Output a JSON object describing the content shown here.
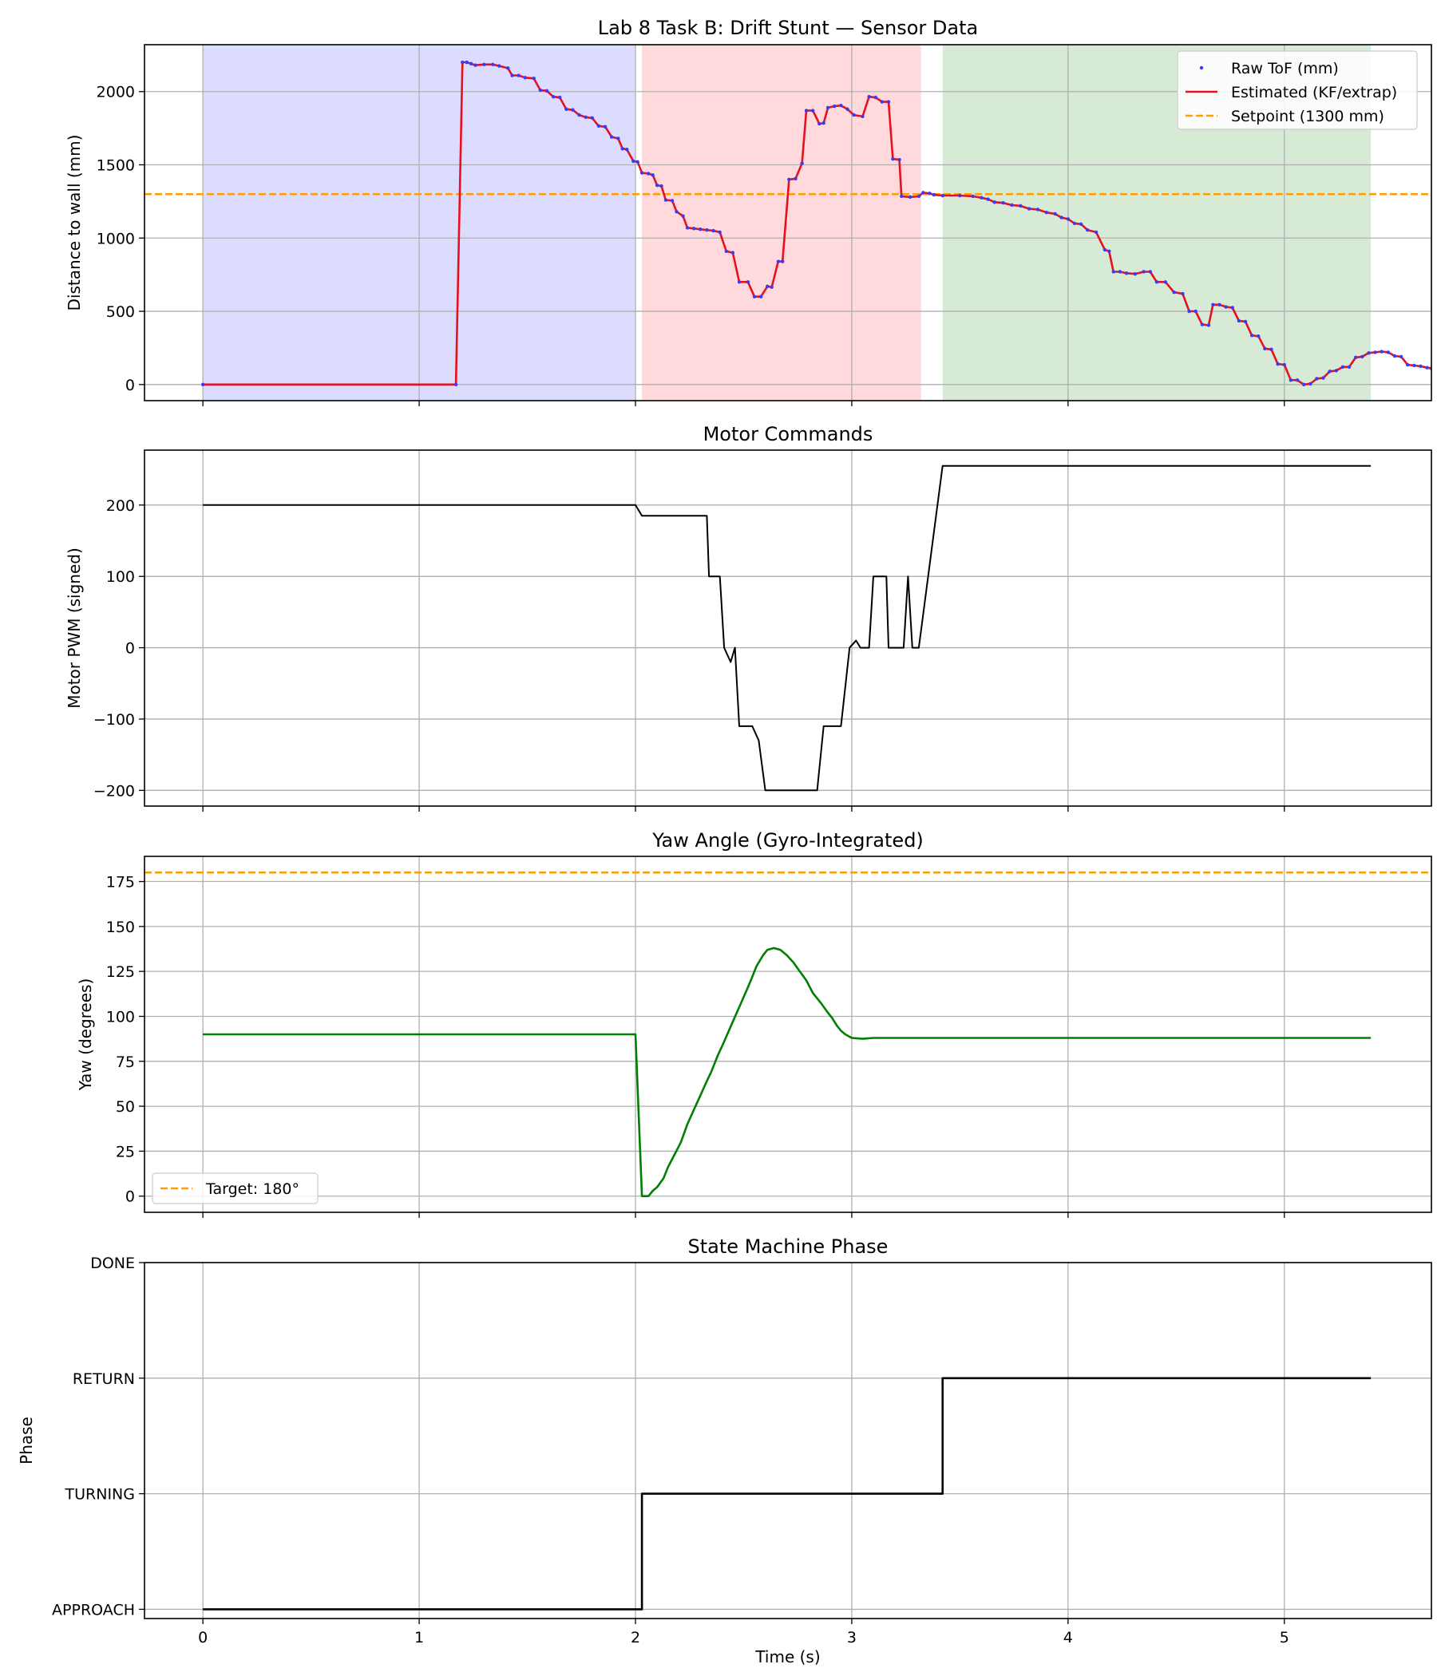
{
  "figure_title": "Lab 8 Task B: Drift Stunt — Sensor Data",
  "xlabel": "Time (s)",
  "colors": {
    "raw": "#3b3bf5",
    "estimate": "#e8101d",
    "setpoint": "#ff9e00",
    "motor": "#000000",
    "yaw": "#008000",
    "phase": "#000000",
    "phase_approach": "#dcdcff",
    "phase_turning": "#ffd9dc",
    "phase_return": "#d6ead6"
  },
  "chart_data": [
    {
      "type": "line",
      "title": "Lab 8 Task B: Drift Stunt — Sensor Data",
      "xlabel": "",
      "ylabel": "Distance to wall (mm)",
      "xlim": [
        -0.27,
        5.68
      ],
      "ylim": [
        -110,
        2320
      ],
      "xticks": [
        0,
        1,
        2,
        3,
        4,
        5
      ],
      "yticks": [
        0,
        500,
        1000,
        1500,
        2000
      ],
      "grid": true,
      "legend_position": "top-right",
      "legend": [
        "Raw ToF (mm)",
        "Estimated (KF/extrap)",
        "Setpoint (1300 mm)"
      ],
      "shaded_regions": [
        {
          "x0": 0,
          "x1": 2.0,
          "color": "phase_approach"
        },
        {
          "x0": 2.03,
          "x1": 3.32,
          "color": "phase_turning"
        },
        {
          "x0": 3.42,
          "x1": 5.4,
          "color": "phase_return"
        }
      ],
      "hlines": [
        {
          "y": 1300,
          "name": "Setpoint (1300 mm)",
          "style": "dashed",
          "color": "setpoint"
        }
      ],
      "series": [
        {
          "name": "Estimated (KF/extrap)",
          "style": "line",
          "color": "estimate",
          "points": [
            [
              0,
              0
            ],
            [
              1.17,
              0
            ],
            [
              1.2,
              2200
            ],
            [
              1.22,
              2200
            ],
            [
              1.24,
              2190
            ],
            [
              1.26,
              2180
            ],
            [
              1.3,
              2185
            ],
            [
              1.34,
              2185
            ],
            [
              1.37,
              2175
            ],
            [
              1.41,
              2160
            ],
            [
              1.43,
              2110
            ],
            [
              1.46,
              2110
            ],
            [
              1.49,
              2095
            ],
            [
              1.53,
              2090
            ],
            [
              1.56,
              2010
            ],
            [
              1.59,
              2005
            ],
            [
              1.62,
              1965
            ],
            [
              1.65,
              1960
            ],
            [
              1.68,
              1880
            ],
            [
              1.71,
              1875
            ],
            [
              1.74,
              1840
            ],
            [
              1.77,
              1825
            ],
            [
              1.8,
              1820
            ],
            [
              1.83,
              1765
            ],
            [
              1.86,
              1760
            ],
            [
              1.89,
              1690
            ],
            [
              1.92,
              1680
            ],
            [
              1.94,
              1610
            ],
            [
              1.96,
              1605
            ],
            [
              1.99,
              1525
            ],
            [
              2.01,
              1520
            ],
            [
              2.03,
              1445
            ],
            [
              2.06,
              1440
            ],
            [
              2.08,
              1430
            ],
            [
              2.1,
              1360
            ],
            [
              2.12,
              1355
            ],
            [
              2.14,
              1260
            ],
            [
              2.17,
              1255
            ],
            [
              2.19,
              1180
            ],
            [
              2.22,
              1150
            ],
            [
              2.24,
              1070
            ],
            [
              2.27,
              1065
            ],
            [
              2.3,
              1060
            ],
            [
              2.33,
              1055
            ],
            [
              2.36,
              1050
            ],
            [
              2.39,
              1040
            ],
            [
              2.42,
              910
            ],
            [
              2.45,
              900
            ],
            [
              2.48,
              700
            ],
            [
              2.52,
              700
            ],
            [
              2.55,
              600
            ],
            [
              2.58,
              600
            ],
            [
              2.61,
              670
            ],
            [
              2.63,
              665
            ],
            [
              2.66,
              840
            ],
            [
              2.68,
              840
            ],
            [
              2.71,
              1400
            ],
            [
              2.74,
              1405
            ],
            [
              2.77,
              1510
            ],
            [
              2.79,
              1870
            ],
            [
              2.82,
              1870
            ],
            [
              2.85,
              1780
            ],
            [
              2.87,
              1785
            ],
            [
              2.89,
              1890
            ],
            [
              2.92,
              1900
            ],
            [
              2.95,
              1905
            ],
            [
              2.98,
              1880
            ],
            [
              3.01,
              1840
            ],
            [
              3.05,
              1830
            ],
            [
              3.08,
              1965
            ],
            [
              3.11,
              1960
            ],
            [
              3.14,
              1930
            ],
            [
              3.17,
              1930
            ],
            [
              3.19,
              1540
            ],
            [
              3.22,
              1535
            ],
            [
              3.23,
              1285
            ],
            [
              3.27,
              1280
            ],
            [
              3.31,
              1285
            ],
            [
              3.33,
              1310
            ],
            [
              3.36,
              1305
            ],
            [
              3.38,
              1295
            ],
            [
              3.42,
              1290
            ],
            [
              3.5,
              1290
            ],
            [
              3.56,
              1285
            ],
            [
              3.6,
              1275
            ],
            [
              3.63,
              1265
            ],
            [
              3.66,
              1245
            ],
            [
              3.7,
              1240
            ],
            [
              3.74,
              1225
            ],
            [
              3.78,
              1220
            ],
            [
              3.82,
              1200
            ],
            [
              3.86,
              1195
            ],
            [
              3.9,
              1175
            ],
            [
              3.94,
              1165
            ],
            [
              3.97,
              1140
            ],
            [
              4.0,
              1130
            ],
            [
              4.03,
              1100
            ],
            [
              4.06,
              1095
            ],
            [
              4.09,
              1055
            ],
            [
              4.13,
              1040
            ],
            [
              4.17,
              920
            ],
            [
              4.19,
              910
            ],
            [
              4.21,
              770
            ],
            [
              4.24,
              770
            ],
            [
              4.27,
              760
            ],
            [
              4.31,
              755
            ],
            [
              4.35,
              770
            ],
            [
              4.38,
              770
            ],
            [
              4.41,
              700
            ],
            [
              4.45,
              700
            ],
            [
              4.49,
              630
            ],
            [
              4.53,
              620
            ],
            [
              4.56,
              500
            ],
            [
              4.59,
              500
            ],
            [
              4.62,
              410
            ],
            [
              4.65,
              405
            ],
            [
              4.67,
              545
            ],
            [
              4.7,
              545
            ],
            [
              4.73,
              530
            ],
            [
              4.76,
              525
            ],
            [
              4.79,
              435
            ],
            [
              4.82,
              430
            ],
            [
              4.85,
              335
            ],
            [
              4.88,
              330
            ],
            [
              4.91,
              245
            ],
            [
              4.94,
              240
            ],
            [
              4.97,
              140
            ],
            [
              5.0,
              135
            ],
            [
              5.03,
              30
            ],
            [
              5.06,
              30
            ],
            [
              5.09,
              0
            ],
            [
              5.12,
              5
            ],
            [
              5.15,
              40
            ],
            [
              5.18,
              45
            ],
            [
              5.21,
              90
            ],
            [
              5.24,
              95
            ],
            [
              5.27,
              120
            ],
            [
              5.3,
              120
            ],
            [
              5.33,
              185
            ],
            [
              5.36,
              190
            ],
            [
              5.39,
              215
            ],
            [
              5.42,
              220
            ],
            [
              5.45,
              225
            ],
            [
              5.48,
              220
            ],
            [
              5.51,
              195
            ],
            [
              5.54,
              190
            ],
            [
              5.57,
              135
            ],
            [
              5.6,
              130
            ],
            [
              5.63,
              125
            ],
            [
              5.66,
              115
            ],
            [
              5.68,
              110
            ],
            [
              5.71,
              105
            ]
          ]
        },
        {
          "name": "Raw ToF (mm)",
          "style": "markers",
          "color": "raw",
          "sample_of": "Estimated (KF/extrap)",
          "step": 1
        }
      ]
    },
    {
      "type": "line",
      "title": "Motor Commands",
      "xlabel": "",
      "ylabel": "Motor PWM (signed)",
      "xlim": [
        -0.27,
        5.68
      ],
      "ylim": [
        -222,
        277
      ],
      "xticks": [
        0,
        1,
        2,
        3,
        4,
        5
      ],
      "yticks": [
        -200,
        -100,
        0,
        100,
        200
      ],
      "grid": true,
      "series": [
        {
          "name": "",
          "color": "motor",
          "points": [
            [
              0,
              200
            ],
            [
              2.0,
              200
            ],
            [
              2.03,
              185
            ],
            [
              2.33,
              185
            ],
            [
              2.34,
              100
            ],
            [
              2.39,
              100
            ],
            [
              2.41,
              0
            ],
            [
              2.44,
              -20
            ],
            [
              2.46,
              0
            ],
            [
              2.48,
              -110
            ],
            [
              2.54,
              -110
            ],
            [
              2.57,
              -130
            ],
            [
              2.6,
              -200
            ],
            [
              2.84,
              -200
            ],
            [
              2.87,
              -110
            ],
            [
              2.95,
              -110
            ],
            [
              2.99,
              0
            ],
            [
              3.02,
              10
            ],
            [
              3.04,
              0
            ],
            [
              3.08,
              0
            ],
            [
              3.1,
              100
            ],
            [
              3.16,
              100
            ],
            [
              3.17,
              0
            ],
            [
              3.24,
              0
            ],
            [
              3.26,
              100
            ],
            [
              3.28,
              0
            ],
            [
              3.31,
              0
            ],
            [
              3.42,
              255
            ],
            [
              5.4,
              255
            ]
          ]
        }
      ]
    },
    {
      "type": "line",
      "title": "Yaw Angle (Gyro-Integrated)",
      "xlabel": "",
      "ylabel": "Yaw (degrees)",
      "xlim": [
        -0.27,
        5.68
      ],
      "ylim": [
        -9,
        189
      ],
      "xticks": [
        0,
        1,
        2,
        3,
        4,
        5
      ],
      "yticks": [
        0,
        25,
        50,
        75,
        100,
        125,
        150,
        175
      ],
      "grid": true,
      "legend_position": "bottom-left",
      "legend": [
        "Target: 180°"
      ],
      "hlines": [
        {
          "y": 180,
          "name": "Target: 180°",
          "style": "dashed",
          "color": "setpoint"
        }
      ],
      "series": [
        {
          "name": "",
          "color": "yaw",
          "points": [
            [
              0,
              90
            ],
            [
              2.0,
              90
            ],
            [
              2.03,
              0
            ],
            [
              2.06,
              0
            ],
            [
              2.08,
              3
            ],
            [
              2.1,
              5
            ],
            [
              2.13,
              10
            ],
            [
              2.15,
              16
            ],
            [
              2.18,
              23
            ],
            [
              2.21,
              30
            ],
            [
              2.24,
              40
            ],
            [
              2.27,
              48
            ],
            [
              2.3,
              56
            ],
            [
              2.33,
              64
            ],
            [
              2.35,
              69
            ],
            [
              2.38,
              78
            ],
            [
              2.41,
              86
            ],
            [
              2.45,
              97
            ],
            [
              2.49,
              108
            ],
            [
              2.53,
              119
            ],
            [
              2.56,
              128
            ],
            [
              2.59,
              134
            ],
            [
              2.61,
              137
            ],
            [
              2.64,
              138
            ],
            [
              2.67,
              137
            ],
            [
              2.7,
              134
            ],
            [
              2.73,
              130
            ],
            [
              2.76,
              125
            ],
            [
              2.79,
              120
            ],
            [
              2.82,
              113
            ],
            [
              2.86,
              107
            ],
            [
              2.89,
              102
            ],
            [
              2.91,
              99
            ],
            [
              2.93,
              95
            ],
            [
              2.95,
              92
            ],
            [
              2.97,
              90
            ],
            [
              3.0,
              88
            ],
            [
              3.05,
              87.5
            ],
            [
              3.1,
              88
            ],
            [
              3.2,
              88
            ],
            [
              3.3,
              88
            ],
            [
              3.5,
              88
            ],
            [
              4.0,
              88
            ],
            [
              5.4,
              88
            ]
          ]
        }
      ]
    },
    {
      "type": "line",
      "title": "State Machine Phase",
      "xlabel": "Time (s)",
      "ylabel": "Phase",
      "xlim": [
        -0.27,
        5.68
      ],
      "ylim": [
        -0.08,
        3.0
      ],
      "xticks": [
        0,
        1,
        2,
        3,
        4,
        5
      ],
      "ytick_values": [
        0,
        1,
        2,
        3
      ],
      "ytick_labels": [
        "APPROACH",
        "TURNING",
        "RETURN",
        "DONE"
      ],
      "grid": true,
      "series": [
        {
          "name": "",
          "color": "phase",
          "style": "step",
          "points": [
            [
              0,
              0
            ],
            [
              2.03,
              0
            ],
            [
              2.03,
              1
            ],
            [
              3.42,
              1
            ],
            [
              3.42,
              2
            ],
            [
              5.4,
              2
            ]
          ]
        }
      ]
    }
  ]
}
